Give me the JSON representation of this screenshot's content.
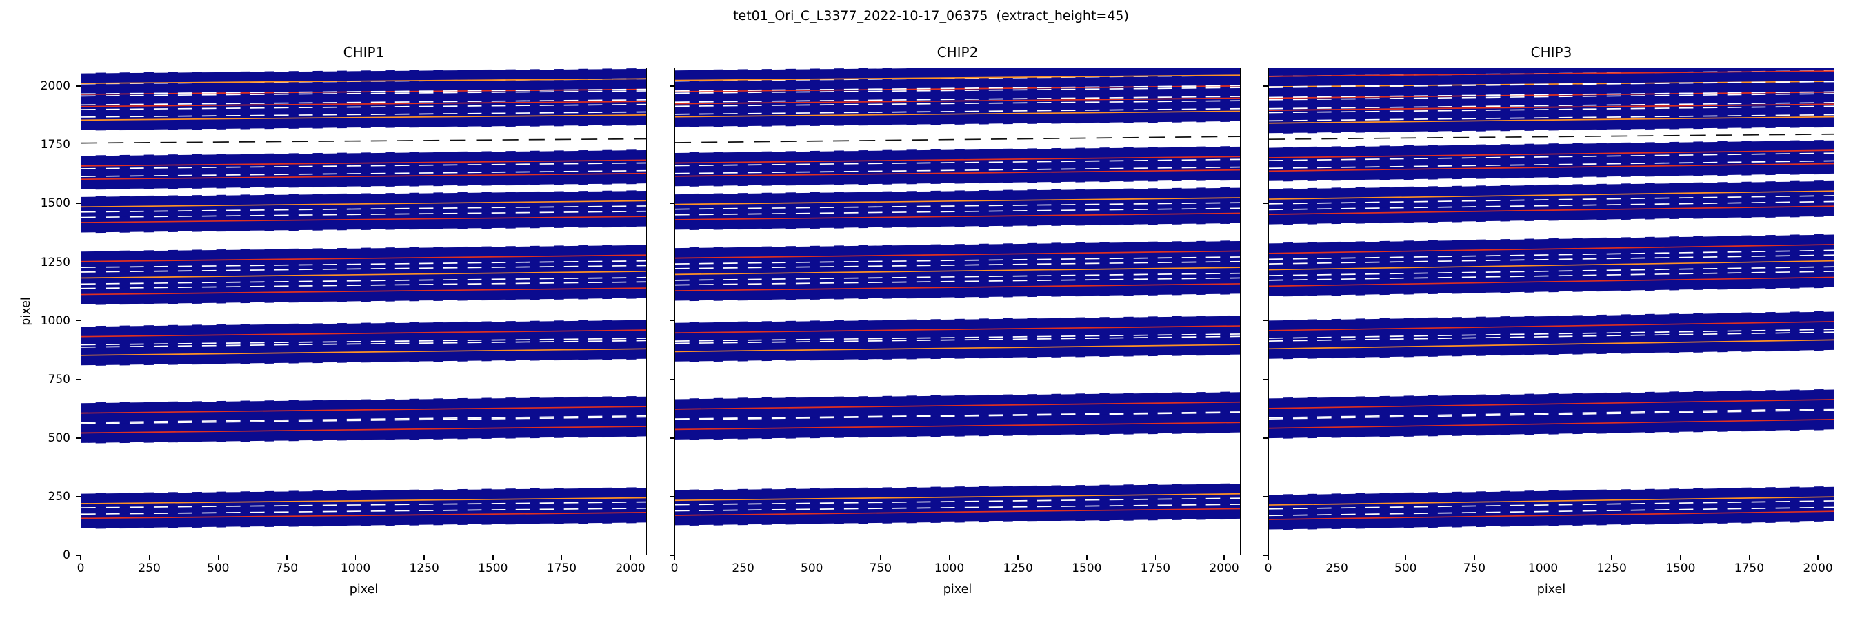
{
  "figure_title": "tet01_Ori_C_L3377_2022-10-17_06375  (extract_height=45)",
  "chart_data": {
    "type": "line",
    "title": "tet01_Ori_C_L3377_2022-10-17_06375  (extract_height=45)",
    "xlabel": "pixel",
    "ylabel": "pixel",
    "xlim": [
      0,
      2060
    ],
    "ylim": [
      0,
      2080
    ],
    "xticks": [
      0,
      250,
      500,
      750,
      1000,
      1250,
      1500,
      1750,
      2000
    ],
    "yticks": [
      0,
      250,
      500,
      750,
      1000,
      1250,
      1500,
      1750,
      2000
    ],
    "extract_height": 45,
    "half_height": 45,
    "grid": false,
    "legend": "none",
    "colors": {
      "band": "#0b0b8f",
      "trace_red": "#e03020",
      "trace_orange": "#ff9224",
      "aperture_dash": "#ffffff",
      "rejected_dash": "#111111",
      "axis": "#000000",
      "background": "#ffffff"
    },
    "panels": [
      {
        "title": "CHIP1",
        "orders": [
          [
            155,
            180,
            "r"
          ],
          [
            218,
            243,
            "o"
          ],
          [
            520,
            548,
            "r"
          ],
          [
            605,
            633,
            "r"
          ],
          [
            852,
            880,
            "o"
          ],
          [
            932,
            960,
            "r"
          ],
          [
            1112,
            1140,
            "r"
          ],
          [
            1183,
            1211,
            "o"
          ],
          [
            1253,
            1281,
            "r"
          ],
          [
            1420,
            1446,
            "r"
          ],
          [
            1487,
            1513,
            "o"
          ],
          [
            1605,
            1630,
            "r"
          ],
          [
            1662,
            1687,
            "r"
          ],
          [
            1858,
            1880,
            "o"
          ],
          [
            1916,
            1938,
            "r"
          ],
          [
            1968,
            1990,
            "r"
          ],
          [
            2015,
            2035,
            "o"
          ]
        ],
        "rejected": [
          [
            1760,
            1778
          ]
        ]
      },
      {
        "title": "CHIP2",
        "orders": [
          [
            168,
            196,
            "r"
          ],
          [
            232,
            260,
            "o"
          ],
          [
            535,
            565,
            "r"
          ],
          [
            622,
            652,
            "r"
          ],
          [
            868,
            898,
            "o"
          ],
          [
            948,
            978,
            "r"
          ],
          [
            1128,
            1158,
            "r"
          ],
          [
            1198,
            1228,
            "o"
          ],
          [
            1268,
            1298,
            "r"
          ],
          [
            1432,
            1460,
            "r"
          ],
          [
            1498,
            1526,
            "o"
          ],
          [
            1618,
            1645,
            "r"
          ],
          [
            1675,
            1702,
            "r"
          ],
          [
            1872,
            1896,
            "o"
          ],
          [
            1928,
            1952,
            "r"
          ],
          [
            1980,
            2004,
            "r"
          ],
          [
            2028,
            2050,
            "o"
          ]
        ],
        "rejected": [
          [
            1762,
            1788
          ]
        ]
      },
      {
        "title": "CHIP3",
        "orders": [
          [
            150,
            185,
            "r"
          ],
          [
            212,
            247,
            "o"
          ],
          [
            540,
            578,
            "r"
          ],
          [
            625,
            663,
            "r"
          ],
          [
            880,
            918,
            "o"
          ],
          [
            958,
            996,
            "r"
          ],
          [
            1148,
            1186,
            "r"
          ],
          [
            1218,
            1256,
            "o"
          ],
          [
            1288,
            1326,
            "r"
          ],
          [
            1455,
            1490,
            "r"
          ],
          [
            1520,
            1555,
            "o"
          ],
          [
            1640,
            1672,
            "r"
          ],
          [
            1697,
            1729,
            "r"
          ],
          [
            1845,
            1872,
            "o"
          ],
          [
            1900,
            1926,
            "r"
          ],
          [
            1952,
            1978,
            "r"
          ],
          [
            2000,
            2024,
            "o"
          ],
          [
            2045,
            2068,
            "r"
          ]
        ],
        "rejected": [
          [
            1776,
            1798
          ]
        ]
      }
    ]
  }
}
